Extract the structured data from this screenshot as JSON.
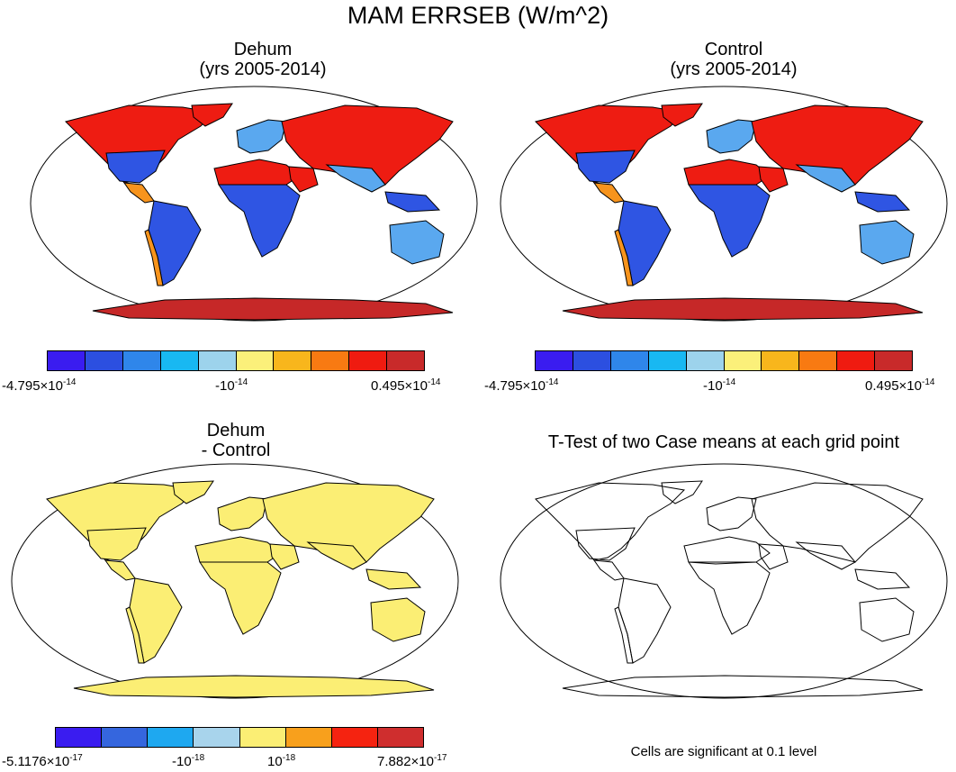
{
  "title": "MAM ERRSEB (W/m^2)",
  "panels": [
    {
      "id": "dehum",
      "title_line1": "Dehum",
      "title_line2": "(yrs 2005-2014)",
      "colorbar": {
        "colors": [
          "#3a1cf0",
          "#2c4fe0",
          "#2f86ea",
          "#18b8f2",
          "#9dd3ec",
          "#fbf07a",
          "#f8b61c",
          "#f87a12",
          "#ef1b10",
          "#c82a2a"
        ],
        "label_min": {
          "mantissa": "-4.795×10",
          "exp": "-14"
        },
        "label_mid": {
          "mantissa": "-10",
          "exp": "-14"
        },
        "label_max": {
          "mantissa": "0.495×10",
          "exp": "-14"
        }
      }
    },
    {
      "id": "control",
      "title_line1": "Control",
      "title_line2": "(yrs 2005-2014)",
      "colorbar": {
        "colors": [
          "#3a1cf0",
          "#2c4fe0",
          "#2f86ea",
          "#18b8f2",
          "#9dd3ec",
          "#fbf07a",
          "#f8b61c",
          "#f87a12",
          "#ef1b10",
          "#c82a2a"
        ],
        "label_min": {
          "mantissa": "-4.795×10",
          "exp": "-14"
        },
        "label_mid": {
          "mantissa": "-10",
          "exp": "-14"
        },
        "label_max": {
          "mantissa": "0.495×10",
          "exp": "-14"
        }
      }
    },
    {
      "id": "diff",
      "title_line1": "Dehum",
      "title_line2": "- Control",
      "colorbar": {
        "colors": [
          "#3a1cf0",
          "#3566de",
          "#1ea8f0",
          "#a8d4ec",
          "#fbee74",
          "#f8a01c",
          "#f52310",
          "#cf2e2e"
        ],
        "label_min": {
          "mantissa": "-5.1176×10",
          "exp": "-17"
        },
        "label_mid1": {
          "mantissa": "-10",
          "exp": "-18"
        },
        "label_mid2": {
          "mantissa": "10",
          "exp": "-18"
        },
        "label_max": {
          "mantissa": "7.882×10",
          "exp": "-17"
        }
      }
    },
    {
      "id": "ttest",
      "title_line1": "T-Test of two Case means at each grid point",
      "note": "Cells are significant at 0.1 level"
    }
  ],
  "map_colors": {
    "red": "#ee1c12",
    "darkred": "#c62828",
    "orange": "#f7941d",
    "yellow": "#fbee74",
    "blue": "#2f55e3",
    "lightblue": "#5aa8ef",
    "coast": "#000000"
  }
}
